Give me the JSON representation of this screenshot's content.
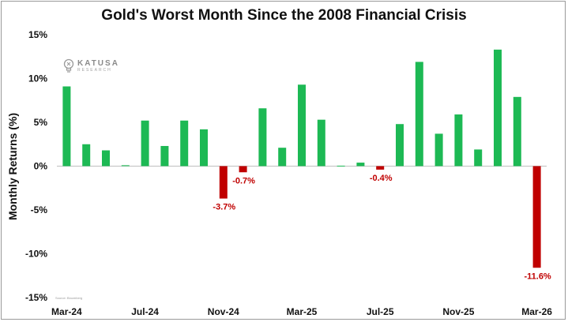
{
  "chart_data": {
    "type": "bar",
    "title": "Gold's Worst Month Since the 2008 Financial Crisis",
    "ylabel": "Monthly Returns (%)",
    "xlabel": "",
    "ylim": [
      -15,
      15
    ],
    "yticks": [
      "15%",
      "10%",
      "5%",
      "0%",
      "-5%",
      "-10%",
      "-15%"
    ],
    "ytick_values": [
      15,
      10,
      5,
      0,
      -5,
      -10,
      -15
    ],
    "xtick_labels": [
      {
        "index": 0,
        "label": "Mar-24"
      },
      {
        "index": 4,
        "label": "Jul-24"
      },
      {
        "index": 8,
        "label": "Nov-24"
      },
      {
        "index": 12,
        "label": "Mar-25"
      },
      {
        "index": 16,
        "label": "Jul-25"
      },
      {
        "index": 20,
        "label": "Nov-25"
      },
      {
        "index": 24,
        "label": "Mar-26"
      }
    ],
    "categories": [
      "Mar-24",
      "Apr-24",
      "May-24",
      "Jun-24",
      "Jul-24",
      "Aug-24",
      "Sep-24",
      "Oct-24",
      "Nov-24",
      "Dec-24",
      "Jan-25",
      "Feb-25",
      "Mar-25",
      "Apr-25",
      "May-25",
      "Jun-25",
      "Jul-25",
      "Aug-25",
      "Sep-25",
      "Oct-25",
      "Nov-25",
      "Dec-25",
      "Jan-26",
      "Feb-26",
      "Mar-26"
    ],
    "values": [
      9.1,
      2.5,
      1.8,
      0.1,
      5.2,
      2.3,
      5.2,
      4.2,
      -3.7,
      -0.7,
      6.6,
      2.1,
      9.3,
      5.3,
      0.05,
      0.4,
      -0.4,
      4.8,
      11.9,
      3.7,
      5.9,
      1.9,
      13.3,
      7.9,
      -11.6
    ],
    "data_labels": [
      {
        "index": 8,
        "label": "-3.7%"
      },
      {
        "index": 9,
        "label": "-0.7%"
      },
      {
        "index": 16,
        "label": "-0.4%"
      },
      {
        "index": 24,
        "label": "-11.6%"
      }
    ],
    "colors": {
      "positive": "#1db954",
      "negative": "#c00000",
      "label_negative": "#c00000"
    },
    "grid": false,
    "legend": "none"
  },
  "branding": {
    "logo_name": "KATUSA",
    "logo_sub": "RESEARCH",
    "logo_icon": "lightbulb-icon",
    "source": "Source: Bloomberg"
  }
}
